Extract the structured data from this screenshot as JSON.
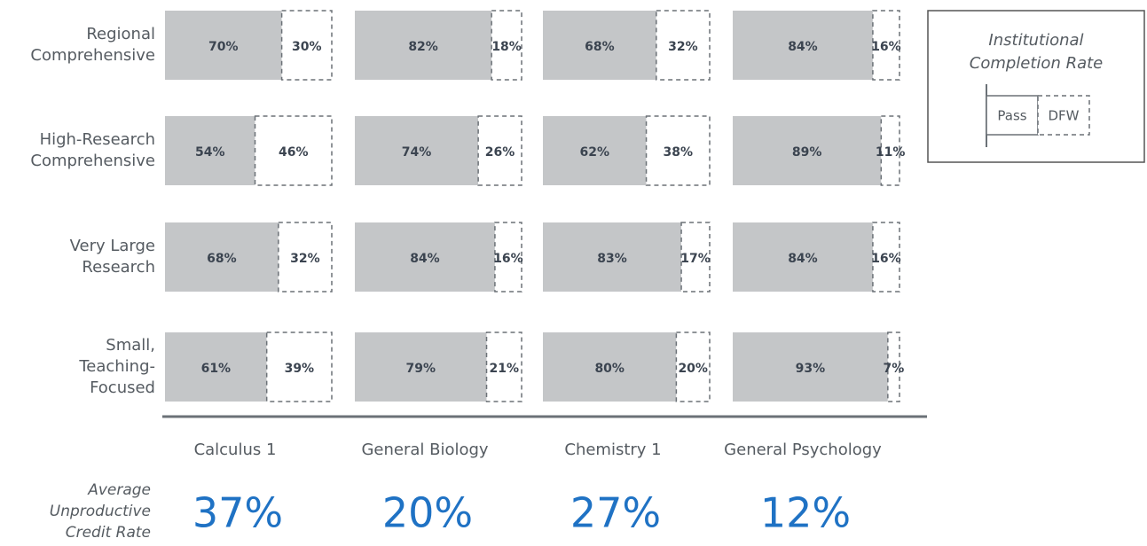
{
  "chart_data": {
    "type": "stacked-bar-grid",
    "categories": [
      [
        "Regional",
        "Comprehensive"
      ],
      [
        "High-Research",
        "Comprehensive"
      ],
      [
        "Very Large",
        "Research"
      ],
      [
        "Small,",
        "Teaching-",
        "Focused"
      ]
    ],
    "columns": [
      "Calculus 1",
      "General Biology",
      "Chemistry 1",
      "General Psychology"
    ],
    "series": [
      {
        "name": "Pass",
        "color": "#c4c6c8",
        "values": [
          [
            70,
            54,
            68,
            61
          ],
          [
            82,
            74,
            84,
            79
          ],
          [
            68,
            62,
            83,
            80
          ],
          [
            84,
            89,
            84,
            93
          ]
        ],
        "value_labels": [
          [
            "70%",
            "54%",
            "68%",
            "61%"
          ],
          [
            "82%",
            "74%",
            "84%",
            "79%"
          ],
          [
            "68%",
            "62%",
            "83%",
            "80%"
          ],
          [
            "84%",
            "89%",
            "84%",
            "93%"
          ]
        ]
      },
      {
        "name": "DFW",
        "color": "#ffffff",
        "values": [
          [
            30,
            46,
            32,
            39
          ],
          [
            18,
            26,
            16,
            21
          ],
          [
            32,
            38,
            17,
            20
          ],
          [
            16,
            11,
            16,
            7
          ]
        ],
        "value_labels": [
          [
            "30%",
            "46%",
            "32%",
            "39%"
          ],
          [
            "18%",
            "26%",
            "16%",
            "21%"
          ],
          [
            "32%",
            "38%",
            "17%",
            "20%"
          ],
          [
            "16%",
            "11%",
            "16%",
            "7%"
          ]
        ]
      }
    ],
    "legend_title": [
      "Institutional",
      "Completion Rate"
    ],
    "summary": {
      "label": [
        "Average",
        "Unproductive",
        "Credit Rate"
      ],
      "values": [
        37,
        20,
        27,
        12
      ],
      "value_labels": [
        "37%",
        "20%",
        "27%",
        "12%"
      ],
      "color": "#1f72c4"
    }
  }
}
